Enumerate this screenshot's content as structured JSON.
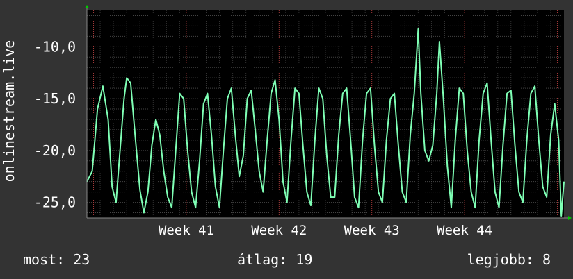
{
  "colors": {
    "background": "#333333",
    "plot_background": "#000000",
    "line": "#7fffb5",
    "grid": "#555555",
    "week_grid": "#a83a3a",
    "text": "#ffffff",
    "arrow": "#00cc00"
  },
  "footer": {
    "now": "most: 23",
    "avg": "átlag: 19",
    "best": "legjobb: 8"
  },
  "chart_data": {
    "type": "line",
    "ylabel": "onlinestream.live",
    "yticks": [
      "-10,0",
      "-15,0",
      "-20,0",
      "-25,0"
    ],
    "ytick_values": [
      -10,
      -15,
      -20,
      -25
    ],
    "ylim": [
      -26.5,
      -6.5
    ],
    "xticks": [
      "Week 41",
      "Week 42",
      "Week 43",
      "Week 44"
    ],
    "xlim": [
      0,
      36
    ],
    "xtick_days": [
      7.5,
      14.5,
      21.5,
      28.5
    ],
    "grid": true,
    "series": [
      {
        "values": [
          [
            0.0,
            -23.0
          ],
          [
            0.4,
            -22.0
          ],
          [
            0.8,
            -16.0
          ],
          [
            1.2,
            -13.8
          ],
          [
            1.6,
            -17.0
          ],
          [
            1.9,
            -23.5
          ],
          [
            2.2,
            -25.0
          ],
          [
            2.5,
            -20.0
          ],
          [
            2.8,
            -15.0
          ],
          [
            3.0,
            -13.0
          ],
          [
            3.3,
            -13.5
          ],
          [
            3.6,
            -18.0
          ],
          [
            4.0,
            -23.8
          ],
          [
            4.3,
            -26.0
          ],
          [
            4.6,
            -24.0
          ],
          [
            4.9,
            -19.5
          ],
          [
            5.2,
            -17.0
          ],
          [
            5.5,
            -18.5
          ],
          [
            5.8,
            -22.0
          ],
          [
            6.1,
            -24.5
          ],
          [
            6.4,
            -25.5
          ],
          [
            6.7,
            -20.0
          ],
          [
            7.0,
            -14.5
          ],
          [
            7.3,
            -15.0
          ],
          [
            7.6,
            -20.0
          ],
          [
            7.9,
            -24.0
          ],
          [
            8.2,
            -25.5
          ],
          [
            8.5,
            -21.0
          ],
          [
            8.8,
            -15.5
          ],
          [
            9.1,
            -14.5
          ],
          [
            9.4,
            -18.5
          ],
          [
            9.7,
            -23.5
          ],
          [
            10.0,
            -25.5
          ],
          [
            10.3,
            -20.0
          ],
          [
            10.6,
            -15.0
          ],
          [
            10.9,
            -14.0
          ],
          [
            11.2,
            -18.5
          ],
          [
            11.5,
            -22.5
          ],
          [
            11.8,
            -20.5
          ],
          [
            12.1,
            -15.0
          ],
          [
            12.4,
            -14.2
          ],
          [
            12.7,
            -18.0
          ],
          [
            13.0,
            -22.0
          ],
          [
            13.3,
            -24.0
          ],
          [
            13.6,
            -19.0
          ],
          [
            13.9,
            -14.5
          ],
          [
            14.2,
            -13.2
          ],
          [
            14.5,
            -17.0
          ],
          [
            14.8,
            -23.0
          ],
          [
            15.1,
            -25.0
          ],
          [
            15.4,
            -19.0
          ],
          [
            15.7,
            -14.0
          ],
          [
            16.0,
            -14.5
          ],
          [
            16.3,
            -19.5
          ],
          [
            16.6,
            -24.0
          ],
          [
            16.9,
            -25.3
          ],
          [
            17.2,
            -19.0
          ],
          [
            17.5,
            -14.0
          ],
          [
            17.8,
            -15.0
          ],
          [
            18.1,
            -20.5
          ],
          [
            18.4,
            -24.5
          ],
          [
            18.7,
            -24.5
          ],
          [
            19.0,
            -18.5
          ],
          [
            19.3,
            -14.5
          ],
          [
            19.6,
            -14.0
          ],
          [
            19.9,
            -19.0
          ],
          [
            20.2,
            -24.5
          ],
          [
            20.5,
            -25.5
          ],
          [
            20.8,
            -19.0
          ],
          [
            21.1,
            -14.5
          ],
          [
            21.4,
            -14.0
          ],
          [
            21.7,
            -19.5
          ],
          [
            22.0,
            -24.0
          ],
          [
            22.3,
            -25.0
          ],
          [
            22.6,
            -19.0
          ],
          [
            22.9,
            -15.0
          ],
          [
            23.2,
            -14.5
          ],
          [
            23.5,
            -19.5
          ],
          [
            23.8,
            -24.0
          ],
          [
            24.1,
            -25.0
          ],
          [
            24.4,
            -18.5
          ],
          [
            24.7,
            -14.5
          ],
          [
            25.0,
            -8.3
          ],
          [
            25.2,
            -14.5
          ],
          [
            25.5,
            -20.0
          ],
          [
            25.8,
            -21.0
          ],
          [
            26.1,
            -19.5
          ],
          [
            26.4,
            -14.5
          ],
          [
            26.6,
            -9.5
          ],
          [
            26.9,
            -15.0
          ],
          [
            27.2,
            -21.5
          ],
          [
            27.5,
            -25.5
          ],
          [
            27.8,
            -19.0
          ],
          [
            28.1,
            -14.0
          ],
          [
            28.4,
            -14.5
          ],
          [
            28.7,
            -20.0
          ],
          [
            29.0,
            -24.0
          ],
          [
            29.3,
            -25.5
          ],
          [
            29.6,
            -19.0
          ],
          [
            29.9,
            -14.5
          ],
          [
            30.2,
            -13.5
          ],
          [
            30.5,
            -19.0
          ],
          [
            30.8,
            -24.0
          ],
          [
            31.1,
            -25.5
          ],
          [
            31.4,
            -19.5
          ],
          [
            31.7,
            -14.5
          ],
          [
            32.0,
            -14.2
          ],
          [
            32.3,
            -19.5
          ],
          [
            32.6,
            -24.0
          ],
          [
            32.9,
            -25.0
          ],
          [
            33.2,
            -19.0
          ],
          [
            33.5,
            -14.5
          ],
          [
            33.8,
            -13.8
          ],
          [
            34.1,
            -19.0
          ],
          [
            34.4,
            -23.5
          ],
          [
            34.7,
            -24.5
          ],
          [
            35.0,
            -18.5
          ],
          [
            35.3,
            -15.5
          ],
          [
            35.6,
            -19.0
          ],
          [
            35.8,
            -26.3
          ],
          [
            36.0,
            -23.0
          ]
        ]
      }
    ]
  }
}
